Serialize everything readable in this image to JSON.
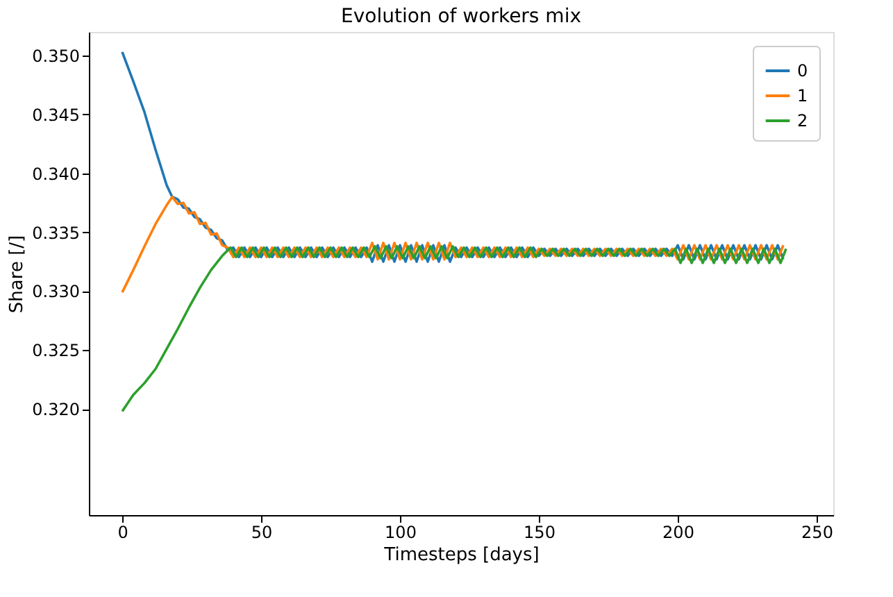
{
  "chart_data": {
    "type": "line",
    "title": "Evolution of workers mix",
    "xlabel": "Timesteps [days]",
    "ylabel": "Share [/]",
    "xlim": [
      -12,
      256
    ],
    "ylim": [
      0.311,
      0.352
    ],
    "xticks": [
      0,
      50,
      100,
      150,
      200,
      250
    ],
    "yticks": [
      {
        "value": 0.32,
        "label": "0.320"
      },
      0.325,
      {
        "value": 0.33,
        "label": "0.330"
      },
      0.335,
      {
        "value": 0.34,
        "label": "0.340"
      },
      0.345,
      {
        "value": 0.35,
        "label": "0.350"
      }
    ],
    "grid": false,
    "legend": "top right",
    "line_style": "solid",
    "marker": "none",
    "x": [
      0,
      4,
      8,
      12,
      16,
      18,
      20,
      22,
      24,
      26,
      28,
      30,
      32,
      34,
      36,
      38,
      40,
      42,
      44,
      46,
      48,
      50,
      52,
      54,
      56,
      58,
      60,
      62,
      64,
      66,
      68,
      70,
      72,
      74,
      76,
      78,
      80,
      82,
      84,
      86,
      88,
      90,
      92,
      94,
      96,
      98,
      100,
      102,
      104,
      106,
      108,
      110,
      112,
      114,
      116,
      118,
      120,
      122,
      124,
      126,
      128,
      130,
      132,
      134,
      136,
      138,
      140,
      142,
      144,
      146,
      148,
      150,
      152,
      154,
      156,
      158,
      160,
      162,
      164,
      166,
      168,
      170,
      172,
      174,
      176,
      178,
      180,
      182,
      184,
      186,
      188,
      190,
      192,
      194,
      196,
      198,
      200,
      202,
      204,
      206,
      208,
      210,
      212,
      214,
      216,
      218,
      220,
      222,
      224,
      226,
      228,
      230,
      232,
      234,
      236,
      238
    ],
    "series": [
      {
        "name": "0",
        "color": "#1f77b4",
        "values": [
          0.3503,
          0.3478,
          0.3452,
          0.342,
          0.339,
          0.338,
          0.3378,
          0.3371,
          0.337,
          0.3363,
          0.3361,
          0.3354,
          0.3352,
          0.3345,
          0.3343,
          0.3335,
          0.3337,
          0.3329,
          0.3337,
          0.3329,
          0.3337,
          0.3329,
          0.3337,
          0.3329,
          0.3337,
          0.3329,
          0.3337,
          0.3329,
          0.3337,
          0.3329,
          0.3337,
          0.3329,
          0.3337,
          0.3329,
          0.3337,
          0.3329,
          0.3337,
          0.3329,
          0.3337,
          0.3329,
          0.3337,
          0.3325,
          0.3339,
          0.3325,
          0.3339,
          0.3325,
          0.3339,
          0.3325,
          0.3339,
          0.3325,
          0.3339,
          0.3325,
          0.3339,
          0.3325,
          0.3339,
          0.3325,
          0.3337,
          0.3329,
          0.3337,
          0.3329,
          0.3337,
          0.3329,
          0.3337,
          0.3329,
          0.3337,
          0.3329,
          0.3337,
          0.3329,
          0.3337,
          0.3329,
          0.3337,
          0.333,
          0.3336,
          0.333,
          0.3336,
          0.333,
          0.3336,
          0.333,
          0.3336,
          0.333,
          0.3336,
          0.333,
          0.3336,
          0.333,
          0.3336,
          0.333,
          0.3336,
          0.333,
          0.3336,
          0.333,
          0.3336,
          0.333,
          0.3336,
          0.333,
          0.3336,
          0.333,
          0.3339,
          0.3327,
          0.3339,
          0.3327,
          0.3339,
          0.3327,
          0.3339,
          0.3327,
          0.3339,
          0.3327,
          0.3339,
          0.3327,
          0.3339,
          0.3327,
          0.3339,
          0.3327,
          0.3339,
          0.3327,
          0.3339,
          0.3327
        ]
      },
      {
        "name": "1",
        "color": "#ff7f0e",
        "values": [
          0.3299,
          0.3318,
          0.3338,
          0.3357,
          0.3373,
          0.338,
          0.3374,
          0.3375,
          0.3366,
          0.3367,
          0.3357,
          0.3358,
          0.3348,
          0.3349,
          0.3339,
          0.3337,
          0.3329,
          0.3337,
          0.3329,
          0.3337,
          0.3329,
          0.3337,
          0.3329,
          0.3337,
          0.3329,
          0.3337,
          0.3329,
          0.3337,
          0.3329,
          0.3337,
          0.3329,
          0.3337,
          0.3329,
          0.3337,
          0.3329,
          0.3337,
          0.3329,
          0.3337,
          0.3329,
          0.3337,
          0.3329,
          0.3341,
          0.3327,
          0.3341,
          0.3327,
          0.3341,
          0.3327,
          0.3341,
          0.3327,
          0.3341,
          0.3327,
          0.3341,
          0.3327,
          0.3341,
          0.3327,
          0.3341,
          0.3329,
          0.3337,
          0.3329,
          0.3337,
          0.3329,
          0.3337,
          0.3329,
          0.3337,
          0.3329,
          0.3337,
          0.3329,
          0.3337,
          0.3329,
          0.3337,
          0.3329,
          0.3336,
          0.333,
          0.3336,
          0.333,
          0.3336,
          0.333,
          0.3336,
          0.333,
          0.3336,
          0.333,
          0.3336,
          0.333,
          0.3336,
          0.333,
          0.3336,
          0.333,
          0.3336,
          0.333,
          0.3336,
          0.333,
          0.3336,
          0.333,
          0.3336,
          0.333,
          0.3336,
          0.3327,
          0.3339,
          0.3327,
          0.3339,
          0.3327,
          0.3339,
          0.3327,
          0.3339,
          0.3327,
          0.3339,
          0.3327,
          0.3339,
          0.3327,
          0.3339,
          0.3327,
          0.3339,
          0.3327,
          0.3339,
          0.3327,
          0.3339
        ]
      },
      {
        "name": "2",
        "color": "#2ca02c",
        "x": [
          0,
          4,
          8,
          12,
          16,
          20,
          24,
          28,
          32,
          36,
          39,
          41,
          43,
          45,
          47,
          49,
          51,
          53,
          55,
          57,
          59,
          61,
          63,
          65,
          67,
          69,
          71,
          73,
          75,
          77,
          79,
          81,
          83,
          85,
          87,
          89,
          91,
          93,
          95,
          97,
          99,
          101,
          103,
          105,
          107,
          109,
          111,
          113,
          115,
          117,
          119,
          121,
          123,
          125,
          127,
          129,
          131,
          133,
          135,
          137,
          139,
          141,
          143,
          145,
          147,
          149,
          151,
          153,
          155,
          157,
          159,
          161,
          163,
          165,
          167,
          169,
          171,
          173,
          175,
          177,
          179,
          181,
          183,
          185,
          187,
          189,
          191,
          193,
          195,
          197,
          199,
          201,
          203,
          205,
          207,
          209,
          211,
          213,
          215,
          217,
          219,
          221,
          223,
          225,
          227,
          229,
          231,
          233,
          235,
          237,
          239
        ],
        "values": [
          0.3198,
          0.3212,
          0.3222,
          0.3234,
          0.3251,
          0.3268,
          0.3286,
          0.3303,
          0.3318,
          0.333,
          0.3337,
          0.3329,
          0.3337,
          0.3329,
          0.3337,
          0.3329,
          0.3337,
          0.3329,
          0.3337,
          0.3329,
          0.3337,
          0.3329,
          0.3337,
          0.3329,
          0.3337,
          0.3329,
          0.3337,
          0.3329,
          0.3337,
          0.3329,
          0.3337,
          0.3329,
          0.3337,
          0.3329,
          0.3337,
          0.3329,
          0.3338,
          0.3328,
          0.3338,
          0.3328,
          0.3338,
          0.3328,
          0.3338,
          0.3328,
          0.3338,
          0.3328,
          0.3338,
          0.3328,
          0.3338,
          0.3328,
          0.3338,
          0.3329,
          0.3337,
          0.3329,
          0.3337,
          0.3329,
          0.3337,
          0.3329,
          0.3337,
          0.3329,
          0.3337,
          0.3329,
          0.3337,
          0.3329,
          0.3337,
          0.3329,
          0.3336,
          0.333,
          0.3336,
          0.333,
          0.3336,
          0.333,
          0.3336,
          0.333,
          0.3336,
          0.333,
          0.3336,
          0.333,
          0.3336,
          0.333,
          0.3336,
          0.333,
          0.3336,
          0.333,
          0.3336,
          0.333,
          0.3336,
          0.333,
          0.3336,
          0.333,
          0.3336,
          0.3324,
          0.3336,
          0.3324,
          0.3336,
          0.3324,
          0.3336,
          0.3324,
          0.3336,
          0.3324,
          0.3336,
          0.3324,
          0.3336,
          0.3324,
          0.3336,
          0.3324,
          0.3336,
          0.3324,
          0.3336,
          0.3324,
          0.3336
        ]
      }
    ]
  }
}
